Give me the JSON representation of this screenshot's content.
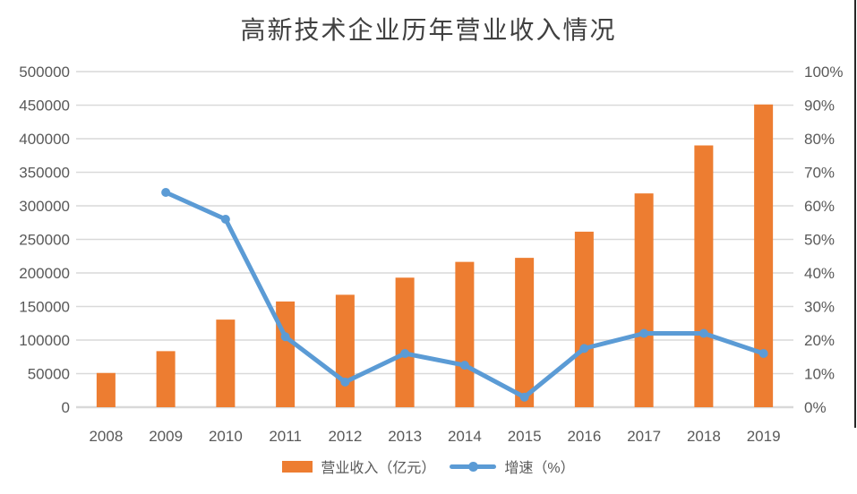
{
  "title": "高新技术企业历年营业收入情况",
  "colors": {
    "bar": "#ED7D31",
    "line": "#5B9BD5",
    "grid": "#D9D9D9",
    "axis_text": "#595959",
    "title_text": "#404040",
    "border_line": "#262626"
  },
  "chart_data": {
    "type": "bar",
    "subtype": "combo-bar-line-dual-axis",
    "title": "高新技术企业历年营业收入情况",
    "categories": [
      "2008",
      "2009",
      "2010",
      "2011",
      "2012",
      "2013",
      "2014",
      "2015",
      "2016",
      "2017",
      "2018",
      "2019"
    ],
    "series": [
      {
        "name": "营业收入（亿元）",
        "type": "bar",
        "axis": "left",
        "color": "#ED7D31",
        "values": [
          51000,
          83500,
          130500,
          157500,
          167500,
          193000,
          216500,
          222500,
          261500,
          318500,
          390000,
          451000
        ]
      },
      {
        "name": "增速（%）",
        "type": "line",
        "axis": "right",
        "color": "#5B9BD5",
        "values": [
          null,
          64,
          56,
          21,
          7.5,
          16,
          12.5,
          3,
          17.5,
          22,
          22,
          16
        ]
      }
    ],
    "left_axis": {
      "min": 0,
      "max": 500000,
      "step": 50000,
      "tick_labels": [
        "0",
        "50000",
        "100000",
        "150000",
        "200000",
        "250000",
        "300000",
        "350000",
        "400000",
        "450000",
        "500000"
      ]
    },
    "right_axis": {
      "min": 0,
      "max": 100,
      "step": 10,
      "tick_labels": [
        "0%",
        "10%",
        "20%",
        "30%",
        "40%",
        "50%",
        "60%",
        "70%",
        "80%",
        "90%",
        "100%"
      ]
    },
    "grid": true,
    "legend_position": "bottom",
    "xlabel": "",
    "ylabel": ""
  }
}
